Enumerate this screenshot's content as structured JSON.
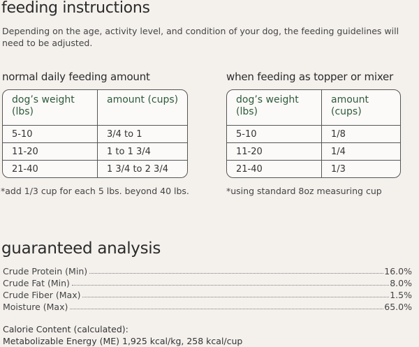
{
  "feeding": {
    "title": "feeding instructions",
    "intro": "Depending on the age, activity level, and condition of your dog, the feeding guidelines will need to be adjusted.",
    "normal": {
      "title": "normal daily feeding amount",
      "headers": [
        "dog’s weight (lbs)",
        "amount (cups)"
      ],
      "rows": [
        [
          "5-10",
          "3/4 to 1"
        ],
        [
          "11-20",
          "1 to 1 3/4"
        ],
        [
          "21-40",
          "1 3/4 to 2 3/4"
        ]
      ],
      "note": "*add 1/3 cup for each 5 lbs. beyond 40 lbs."
    },
    "topper": {
      "title": "when feeding as topper or mixer",
      "headers": [
        "dog’s weight (lbs)",
        "amount (cups)"
      ],
      "rows": [
        [
          "5-10",
          "1/8"
        ],
        [
          "11-20",
          "1/4"
        ],
        [
          "21-40",
          "1/3"
        ]
      ],
      "note": "*using standard 8oz measuring cup"
    }
  },
  "analysis": {
    "title": "guaranteed analysis",
    "items": [
      {
        "label": "Crude Protein (Min)",
        "value": "16.0%"
      },
      {
        "label": "Crude Fat (Min)",
        "value": "8.0%"
      },
      {
        "label": "Crude Fiber (Max)",
        "value": "1.5%"
      },
      {
        "label": "Moisture (Max)",
        "value": "65.0%"
      }
    ],
    "calorie_title": "Calorie Content (calculated):",
    "calorie_value": "Metabolizable Energy (ME) 1,925 kcal/kg, 258 kcal/cup"
  },
  "colors": {
    "header_text": "#2e5a3b",
    "background": "#f4f1ed"
  }
}
